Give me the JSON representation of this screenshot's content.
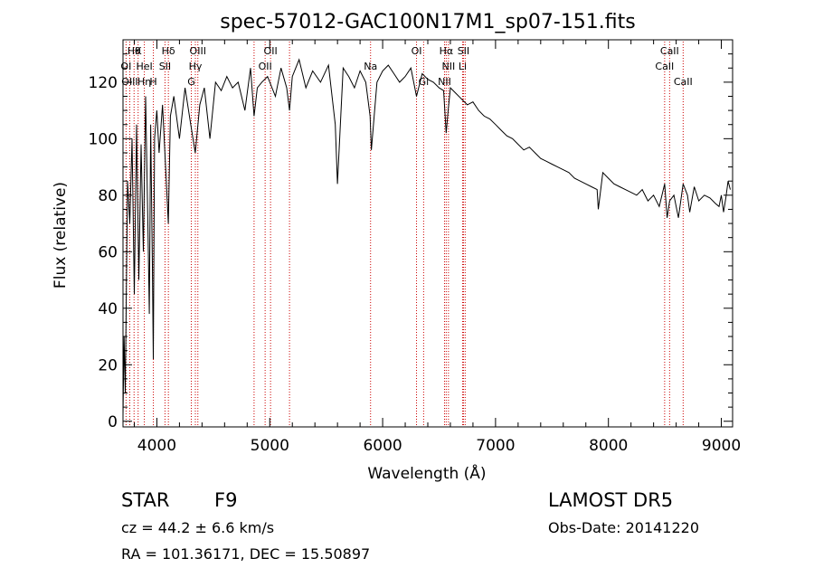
{
  "chart_data": {
    "type": "line",
    "title": "spec-57012-GAC100N17M1_sp07-151.fits",
    "xlabel": "Wavelength (Å)",
    "ylabel": "Flux (relative)",
    "xlim": [
      3700,
      9100
    ],
    "ylim": [
      -2,
      135
    ],
    "xticks": [
      4000,
      5000,
      6000,
      7000,
      8000,
      9000
    ],
    "yticks": [
      0,
      20,
      40,
      60,
      80,
      100,
      120
    ],
    "grid": false,
    "series_color": "#000000",
    "line_marker_color": "#cc0000",
    "series": [
      {
        "x": [
          3700,
          3710,
          3720,
          3740,
          3760,
          3780,
          3800,
          3820,
          3840,
          3860,
          3880,
          3900,
          3920,
          3933,
          3945,
          3960,
          3968,
          3980,
          4000,
          4020,
          4050,
          4080,
          4101,
          4120,
          4150,
          4200,
          4250,
          4300,
          4340,
          4380,
          4420,
          4470,
          4520,
          4570,
          4620,
          4670,
          4720,
          4780,
          4830,
          4861,
          4890,
          4930,
          4980,
          5050,
          5100,
          5150,
          5175,
          5200,
          5260,
          5320,
          5380,
          5450,
          5520,
          5580,
          5600,
          5650,
          5700,
          5750,
          5800,
          5850,
          5889,
          5900,
          5950,
          6000,
          6050,
          6100,
          6150,
          6200,
          6250,
          6300,
          6350,
          6400,
          6450,
          6500,
          6540,
          6563,
          6580,
          6600,
          6650,
          6700,
          6750,
          6800,
          6850,
          6900,
          6950,
          7000,
          7050,
          7100,
          7150,
          7200,
          7250,
          7300,
          7350,
          7400,
          7450,
          7500,
          7550,
          7600,
          7650,
          7700,
          7750,
          7800,
          7850,
          7900,
          7910,
          7950,
          8000,
          8050,
          8100,
          8150,
          8200,
          8250,
          8300,
          8350,
          8400,
          8450,
          8498,
          8520,
          8542,
          8580,
          8620,
          8662,
          8700,
          8720,
          8760,
          8800,
          8850,
          8900,
          8950,
          8980,
          9000,
          9020,
          9040,
          9060,
          9080
        ],
        "y": [
          2,
          30,
          10,
          85,
          70,
          100,
          45,
          105,
          50,
          98,
          60,
          115,
          70,
          38,
          105,
          55,
          22,
          100,
          110,
          95,
          112,
          88,
          70,
          108,
          115,
          100,
          118,
          105,
          95,
          112,
          118,
          100,
          120,
          117,
          122,
          118,
          120,
          110,
          125,
          108,
          118,
          120,
          122,
          115,
          125,
          118,
          110,
          122,
          128,
          118,
          124,
          120,
          126,
          105,
          84,
          125,
          122,
          118,
          124,
          120,
          108,
          96,
          120,
          124,
          126,
          123,
          120,
          122,
          125,
          115,
          123,
          121,
          120,
          118,
          117,
          102,
          110,
          118,
          116,
          114,
          112,
          113,
          110,
          108,
          107,
          105,
          103,
          101,
          100,
          98,
          96,
          97,
          95,
          93,
          92,
          91,
          90,
          89,
          88,
          86,
          85,
          84,
          83,
          82,
          75,
          88,
          86,
          84,
          83,
          82,
          81,
          80,
          82,
          78,
          80,
          76,
          84,
          72,
          78,
          80,
          72,
          84,
          80,
          74,
          83,
          78,
          80,
          79,
          77,
          76,
          80,
          74,
          79,
          85,
          82
        ]
      }
    ],
    "spectral_lines": [
      {
        "label": "Hθ",
        "x": 3798,
        "row": 0
      },
      {
        "label": "K",
        "x": 3834,
        "row": 0
      },
      {
        "label": "Hδ",
        "x": 4102,
        "row": 0
      },
      {
        "label": "OIII",
        "x": 4363,
        "row": 0
      },
      {
        "label": "OII",
        "x": 5007,
        "row": 0
      },
      {
        "label": "OI",
        "x": 6300,
        "row": 0
      },
      {
        "label": "Hα",
        "x": 6563,
        "row": 0
      },
      {
        "label": "SII",
        "x": 6716,
        "row": 0
      },
      {
        "label": "CaII",
        "x": 8542,
        "row": 0
      },
      {
        "label": "OI",
        "x": 3727,
        "row": 1
      },
      {
        "label": "HeI",
        "x": 3889,
        "row": 1
      },
      {
        "label": "SII",
        "x": 4072,
        "row": 1
      },
      {
        "label": "Hγ",
        "x": 4341,
        "row": 1
      },
      {
        "label": "OII",
        "x": 4959,
        "row": 1
      },
      {
        "label": "Na",
        "x": 5893,
        "row": 1
      },
      {
        "label": "NII",
        "x": 6583,
        "row": 1
      },
      {
        "label": "Li",
        "x": 6708,
        "row": 1
      },
      {
        "label": "CaII",
        "x": 8498,
        "row": 1
      },
      {
        "label": "OIII",
        "x": 3760,
        "row": 2
      },
      {
        "label": "Hη",
        "x": 3889,
        "row": 2
      },
      {
        "label": "H",
        "x": 3969,
        "row": 2
      },
      {
        "label": "G",
        "x": 4305,
        "row": 2
      },
      {
        "label": "Gl",
        "x": 6363,
        "row": 2
      },
      {
        "label": "NII",
        "x": 6548,
        "row": 2
      },
      {
        "label": "CaII",
        "x": 8662,
        "row": 2
      }
    ],
    "extra_marker_lines": [
      4861,
      5175,
      6731
    ]
  },
  "info": {
    "object_class": "STAR",
    "subclass": "F9",
    "survey": "LAMOST DR5",
    "cz_text": "cz = 44.2 ± 6.6 km/s",
    "obs_date_text": "Obs-Date: 20141220",
    "coords_text": "RA = 101.36171, DEC =  15.50897"
  }
}
